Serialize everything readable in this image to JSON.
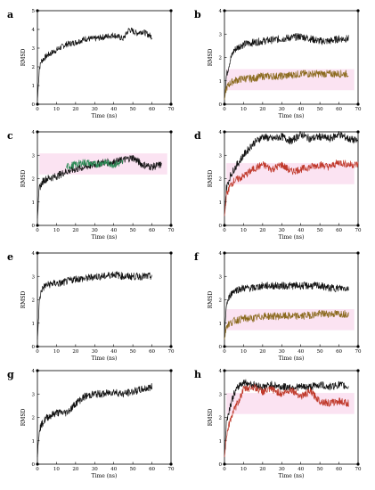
{
  "chart_data": [
    {
      "panel": "a",
      "type": "line",
      "xlabel": "Time (ns)",
      "ylabel": "RMSD",
      "xlim": [
        0,
        70
      ],
      "ylim": [
        0,
        5
      ],
      "xticks": [
        0,
        10,
        20,
        30,
        40,
        50,
        60,
        70
      ],
      "yticks": [
        0,
        1,
        2,
        3,
        4,
        5
      ],
      "series": [
        {
          "color": "#111111",
          "x": [
            0,
            1,
            2,
            5,
            10,
            15,
            20,
            25,
            30,
            35,
            40,
            45,
            48,
            52,
            55,
            60
          ],
          "y": [
            0.2,
            1.9,
            2.3,
            2.6,
            2.9,
            3.2,
            3.3,
            3.5,
            3.5,
            3.6,
            3.7,
            3.5,
            4.0,
            3.8,
            3.9,
            3.6
          ]
        }
      ]
    },
    {
      "panel": "b",
      "type": "line",
      "xlabel": "Time (ns)",
      "ylabel": "RMSD",
      "xlim": [
        0,
        70
      ],
      "ylim": [
        0,
        4
      ],
      "xticks": [
        0,
        10,
        20,
        30,
        40,
        50,
        60,
        70
      ],
      "yticks": [
        0,
        1,
        2,
        3,
        4
      ],
      "series": [
        {
          "color": "#111111",
          "x": [
            0,
            1,
            3,
            5,
            8,
            12,
            20,
            30,
            40,
            45,
            50,
            55,
            60,
            65
          ],
          "y": [
            0.2,
            1.2,
            1.9,
            2.3,
            2.5,
            2.6,
            2.7,
            2.8,
            2.9,
            2.8,
            2.7,
            2.7,
            2.8,
            2.8
          ]
        },
        {
          "color": "#8b6a1e",
          "x": [
            0,
            1,
            3,
            5,
            10,
            15,
            20,
            30,
            40,
            50,
            60,
            65
          ],
          "y": [
            0.2,
            0.7,
            0.9,
            1.0,
            1.1,
            1.1,
            1.2,
            1.2,
            1.3,
            1.3,
            1.3,
            1.3
          ]
        }
      ]
    },
    {
      "panel": "c",
      "type": "line",
      "xlabel": "Time (ns)",
      "ylabel": "RMSD",
      "xlim": [
        0,
        70
      ],
      "ylim": [
        0,
        4
      ],
      "xticks": [
        0,
        10,
        20,
        30,
        40,
        50,
        60,
        70
      ],
      "yticks": [
        0,
        1,
        2,
        3,
        4
      ],
      "series": [
        {
          "color": "#111111",
          "x": [
            0,
            1,
            3,
            5,
            10,
            15,
            20,
            25,
            30,
            35,
            40,
            45,
            50,
            55,
            60,
            65
          ],
          "y": [
            0.3,
            1.6,
            1.9,
            2.0,
            2.1,
            2.3,
            2.4,
            2.5,
            2.6,
            2.7,
            2.7,
            2.8,
            2.9,
            2.6,
            2.5,
            2.6
          ]
        },
        {
          "color": "#2e8b57",
          "x": [
            15,
            20,
            25,
            30,
            35,
            40,
            45
          ],
          "y": [
            2.5,
            2.6,
            2.7,
            2.6,
            2.7,
            2.6,
            2.7
          ]
        }
      ]
    },
    {
      "panel": "d",
      "type": "line",
      "xlabel": "Time (ns)",
      "ylabel": "RMSD",
      "xlim": [
        0,
        70
      ],
      "ylim": [
        0,
        4
      ],
      "xticks": [
        0,
        10,
        20,
        30,
        40,
        50,
        60,
        70
      ],
      "yticks": [
        0,
        1,
        2,
        3,
        4
      ],
      "series": [
        {
          "color": "#111111",
          "x": [
            0,
            1,
            3,
            5,
            10,
            15,
            20,
            25,
            30,
            35,
            40,
            45,
            50,
            55,
            60,
            65,
            70
          ],
          "y": [
            0.4,
            1.6,
            2.1,
            2.4,
            3.0,
            3.5,
            3.8,
            3.7,
            3.8,
            3.6,
            3.9,
            3.7,
            3.8,
            3.7,
            3.9,
            3.7,
            3.6
          ]
        },
        {
          "color": "#c0392b",
          "x": [
            0,
            1,
            3,
            5,
            10,
            15,
            20,
            25,
            30,
            35,
            40,
            45,
            50,
            55,
            60,
            65,
            70
          ],
          "y": [
            0.4,
            1.3,
            1.7,
            1.9,
            2.1,
            2.4,
            2.6,
            2.4,
            2.6,
            2.3,
            2.4,
            2.5,
            2.6,
            2.5,
            2.7,
            2.6,
            2.6
          ]
        }
      ]
    },
    {
      "panel": "e",
      "type": "line",
      "xlabel": "Time (ns)",
      "ylabel": "RMSD",
      "xlim": [
        0,
        70
      ],
      "ylim": [
        0,
        4
      ],
      "xticks": [
        0,
        10,
        20,
        30,
        40,
        50,
        60,
        70
      ],
      "yticks": [
        0,
        1,
        2,
        3,
        4
      ],
      "series": [
        {
          "color": "#111111",
          "x": [
            0,
            1,
            2,
            4,
            8,
            12,
            16,
            20,
            25,
            30,
            35,
            40,
            45,
            50,
            55,
            60
          ],
          "y": [
            0.3,
            1.9,
            2.4,
            2.6,
            2.7,
            2.7,
            2.8,
            2.9,
            2.9,
            3.0,
            3.0,
            3.1,
            3.0,
            3.0,
            3.0,
            3.0
          ]
        }
      ]
    },
    {
      "panel": "f",
      "type": "line",
      "xlabel": "Time (ns)",
      "ylabel": "RMSD",
      "xlim": [
        0,
        70
      ],
      "ylim": [
        0,
        4
      ],
      "xticks": [
        0,
        10,
        20,
        30,
        40,
        50,
        60,
        70
      ],
      "yticks": [
        0,
        1,
        2,
        3,
        4
      ],
      "series": [
        {
          "color": "#111111",
          "x": [
            0,
            1,
            3,
            5,
            10,
            15,
            20,
            25,
            30,
            35,
            40,
            45,
            50,
            55,
            60,
            65
          ],
          "y": [
            0.3,
            1.8,
            2.2,
            2.4,
            2.5,
            2.5,
            2.6,
            2.6,
            2.6,
            2.6,
            2.6,
            2.6,
            2.6,
            2.5,
            2.5,
            2.5
          ]
        },
        {
          "color": "#8b6a1e",
          "x": [
            0,
            1,
            3,
            5,
            10,
            15,
            20,
            30,
            40,
            50,
            60,
            65
          ],
          "y": [
            0.3,
            0.9,
            1.0,
            1.1,
            1.2,
            1.2,
            1.3,
            1.3,
            1.3,
            1.4,
            1.4,
            1.4
          ]
        }
      ]
    },
    {
      "panel": "g",
      "type": "line",
      "xlabel": "Time (ns)",
      "ylabel": "RMSD",
      "xlim": [
        0,
        70
      ],
      "ylim": [
        0,
        4
      ],
      "xticks": [
        0,
        10,
        20,
        30,
        40,
        50,
        60,
        70
      ],
      "yticks": [
        0,
        1,
        2,
        3,
        4
      ],
      "series": [
        {
          "color": "#111111",
          "x": [
            0,
            1,
            3,
            5,
            10,
            15,
            18,
            20,
            25,
            30,
            35,
            40,
            45,
            50,
            55,
            60
          ],
          "y": [
            0.3,
            1.5,
            1.8,
            2.0,
            2.2,
            2.2,
            2.4,
            2.6,
            2.9,
            3.0,
            3.0,
            3.1,
            3.0,
            3.1,
            3.2,
            3.3
          ]
        }
      ]
    },
    {
      "panel": "h",
      "type": "line",
      "xlabel": "Time (ns)",
      "ylabel": "RMSD",
      "xlim": [
        0,
        70
      ],
      "ylim": [
        0,
        4
      ],
      "xticks": [
        0,
        10,
        20,
        30,
        40,
        50,
        60,
        70
      ],
      "yticks": [
        0,
        1,
        2,
        3,
        4
      ],
      "series": [
        {
          "color": "#111111",
          "x": [
            0,
            1,
            3,
            5,
            8,
            10,
            15,
            20,
            25,
            30,
            35,
            40,
            45,
            50,
            55,
            60,
            65
          ],
          "y": [
            0.3,
            1.8,
            2.5,
            3.0,
            3.4,
            3.5,
            3.4,
            3.3,
            3.4,
            3.3,
            3.3,
            3.3,
            3.3,
            3.4,
            3.3,
            3.4,
            3.3
          ]
        },
        {
          "color": "#c0392b",
          "x": [
            0,
            1,
            3,
            5,
            8,
            10,
            15,
            20,
            25,
            30,
            35,
            40,
            45,
            50,
            55,
            60,
            65
          ],
          "y": [
            0.3,
            1.2,
            1.9,
            2.3,
            2.8,
            3.2,
            3.3,
            3.1,
            3.2,
            3.0,
            3.2,
            2.9,
            3.1,
            2.7,
            2.6,
            2.7,
            2.6
          ]
        }
      ]
    }
  ]
}
